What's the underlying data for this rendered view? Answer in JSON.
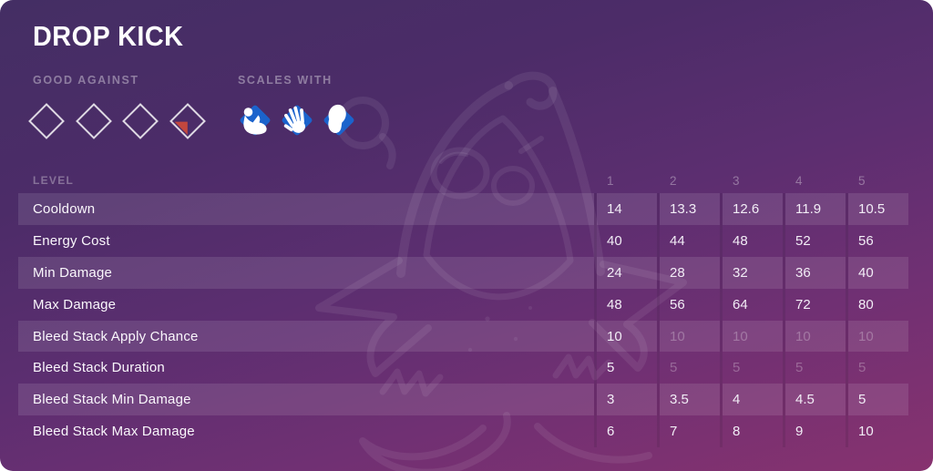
{
  "card": {
    "title": "DROP KICK"
  },
  "good_against": {
    "label": "GOOD AGAINST",
    "slots": [
      {
        "marked": false
      },
      {
        "marked": false
      },
      {
        "marked": false
      },
      {
        "marked": true
      }
    ]
  },
  "scales_with": {
    "label": "SCALES WITH",
    "icons": [
      {
        "name": "strength"
      },
      {
        "name": "dexterity"
      },
      {
        "name": "agility"
      }
    ]
  },
  "table": {
    "level_label": "LEVEL",
    "levels": [
      "1",
      "2",
      "3",
      "4",
      "5"
    ],
    "rows": [
      {
        "label": "Cooldown",
        "values": [
          "14",
          "13.3",
          "12.6",
          "11.9",
          "10.5"
        ],
        "dimmed": [
          false,
          false,
          false,
          false,
          false
        ]
      },
      {
        "label": "Energy Cost",
        "values": [
          "40",
          "44",
          "48",
          "52",
          "56"
        ],
        "dimmed": [
          false,
          false,
          false,
          false,
          false
        ]
      },
      {
        "label": "Min Damage",
        "values": [
          "24",
          "28",
          "32",
          "36",
          "40"
        ],
        "dimmed": [
          false,
          false,
          false,
          false,
          false
        ]
      },
      {
        "label": "Max Damage",
        "values": [
          "48",
          "56",
          "64",
          "72",
          "80"
        ],
        "dimmed": [
          false,
          false,
          false,
          false,
          false
        ]
      },
      {
        "label": "Bleed Stack Apply Chance",
        "values": [
          "10",
          "10",
          "10",
          "10",
          "10"
        ],
        "dimmed": [
          false,
          true,
          true,
          true,
          true
        ]
      },
      {
        "label": "Bleed Stack Duration",
        "values": [
          "5",
          "5",
          "5",
          "5",
          "5"
        ],
        "dimmed": [
          false,
          true,
          true,
          true,
          true
        ]
      },
      {
        "label": "Bleed Stack Min Damage",
        "values": [
          "3",
          "3.5",
          "4",
          "4.5",
          "5"
        ],
        "dimmed": [
          false,
          false,
          false,
          false,
          false
        ]
      },
      {
        "label": "Bleed Stack Max Damage",
        "values": [
          "6",
          "7",
          "8",
          "9",
          "10"
        ],
        "dimmed": [
          false,
          false,
          false,
          false,
          false
        ]
      }
    ]
  },
  "colors": {
    "marker_red": "#c2473e",
    "scale_blue": "#1b63cc",
    "diamond_outline": "rgba(255,255,255,0.82)",
    "bg_top": "#442e64",
    "bg_bottom": "#87326f"
  }
}
